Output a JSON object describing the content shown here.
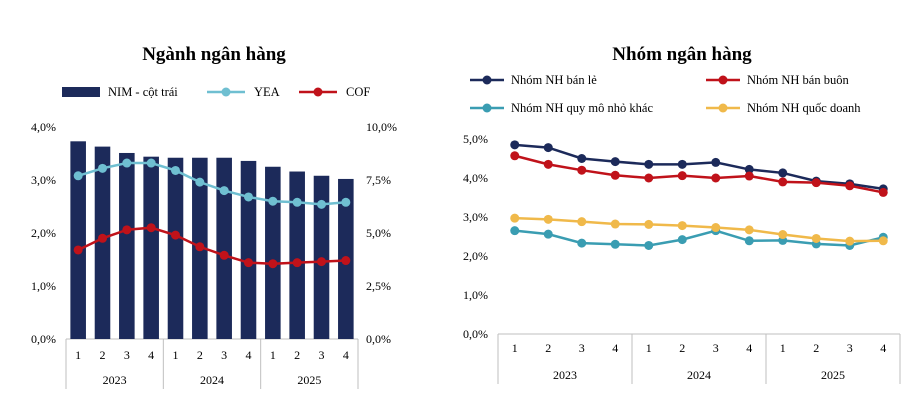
{
  "chart_data": [
    {
      "type": "bar+line",
      "title": "Ngành ngân hàng",
      "quarters": [
        "1",
        "2",
        "3",
        "4",
        "1",
        "2",
        "3",
        "4",
        "1",
        "2",
        "3",
        "4"
      ],
      "years": [
        "2023",
        "2024",
        "2025"
      ],
      "y_left": {
        "ticks": [
          "0,0%",
          "1,0%",
          "2,0%",
          "3,0%",
          "4,0%"
        ],
        "range": [
          0,
          4.0
        ]
      },
      "y_right": {
        "ticks": [
          "0,0%",
          "2,5%",
          "5,0%",
          "7,5%",
          "10,0%"
        ],
        "range": [
          0,
          10.0
        ]
      },
      "bar_series": {
        "name": "NIM - cột trái",
        "axis": "left",
        "color": "#1c2a5a",
        "values": [
          3.73,
          3.63,
          3.51,
          3.44,
          3.42,
          3.42,
          3.42,
          3.36,
          3.25,
          3.16,
          3.08,
          3.02
        ]
      },
      "line_series": [
        {
          "name": "YEA",
          "axis": "right",
          "color": "#6fbfd1",
          "values": [
            7.7,
            8.05,
            8.3,
            8.3,
            7.95,
            7.4,
            7.0,
            6.7,
            6.5,
            6.45,
            6.35,
            6.45
          ]
        },
        {
          "name": "COF",
          "axis": "right",
          "color": "#c0121a",
          "values": [
            4.2,
            4.75,
            5.15,
            5.25,
            4.9,
            4.35,
            3.95,
            3.6,
            3.55,
            3.6,
            3.65,
            3.7
          ]
        }
      ],
      "legend_position": "top"
    },
    {
      "type": "line",
      "title": "Nhóm ngân hàng",
      "quarters": [
        "1",
        "2",
        "3",
        "4",
        "1",
        "2",
        "3",
        "4",
        "1",
        "2",
        "3",
        "4"
      ],
      "years": [
        "2023",
        "2024",
        "2025"
      ],
      "y": {
        "ticks": [
          "0,0%",
          "1,0%",
          "2,0%",
          "3,0%",
          "4,0%",
          "5,0%"
        ],
        "range": [
          0,
          5.0
        ]
      },
      "series": [
        {
          "name": "Nhóm NH bán lẻ",
          "color": "#1c2a5a",
          "values": [
            4.85,
            4.78,
            4.5,
            4.42,
            4.35,
            4.35,
            4.4,
            4.22,
            4.13,
            3.92,
            3.85,
            3.72
          ]
        },
        {
          "name": "Nhóm NH bán buôn",
          "color": "#c0121a",
          "values": [
            4.57,
            4.35,
            4.2,
            4.07,
            4.0,
            4.06,
            4.0,
            4.05,
            3.9,
            3.88,
            3.8,
            3.63
          ]
        },
        {
          "name": "Nhóm NH quy mô nhỏ khác",
          "color": "#3a9db2",
          "values": [
            2.65,
            2.56,
            2.33,
            2.3,
            2.27,
            2.42,
            2.65,
            2.39,
            2.4,
            2.31,
            2.27,
            2.48
          ]
        },
        {
          "name": "Nhóm NH quốc doanh",
          "color": "#f0b94a",
          "values": [
            2.97,
            2.94,
            2.88,
            2.82,
            2.81,
            2.78,
            2.73,
            2.67,
            2.55,
            2.45,
            2.38,
            2.39
          ]
        }
      ],
      "legend_position": "top"
    }
  ]
}
